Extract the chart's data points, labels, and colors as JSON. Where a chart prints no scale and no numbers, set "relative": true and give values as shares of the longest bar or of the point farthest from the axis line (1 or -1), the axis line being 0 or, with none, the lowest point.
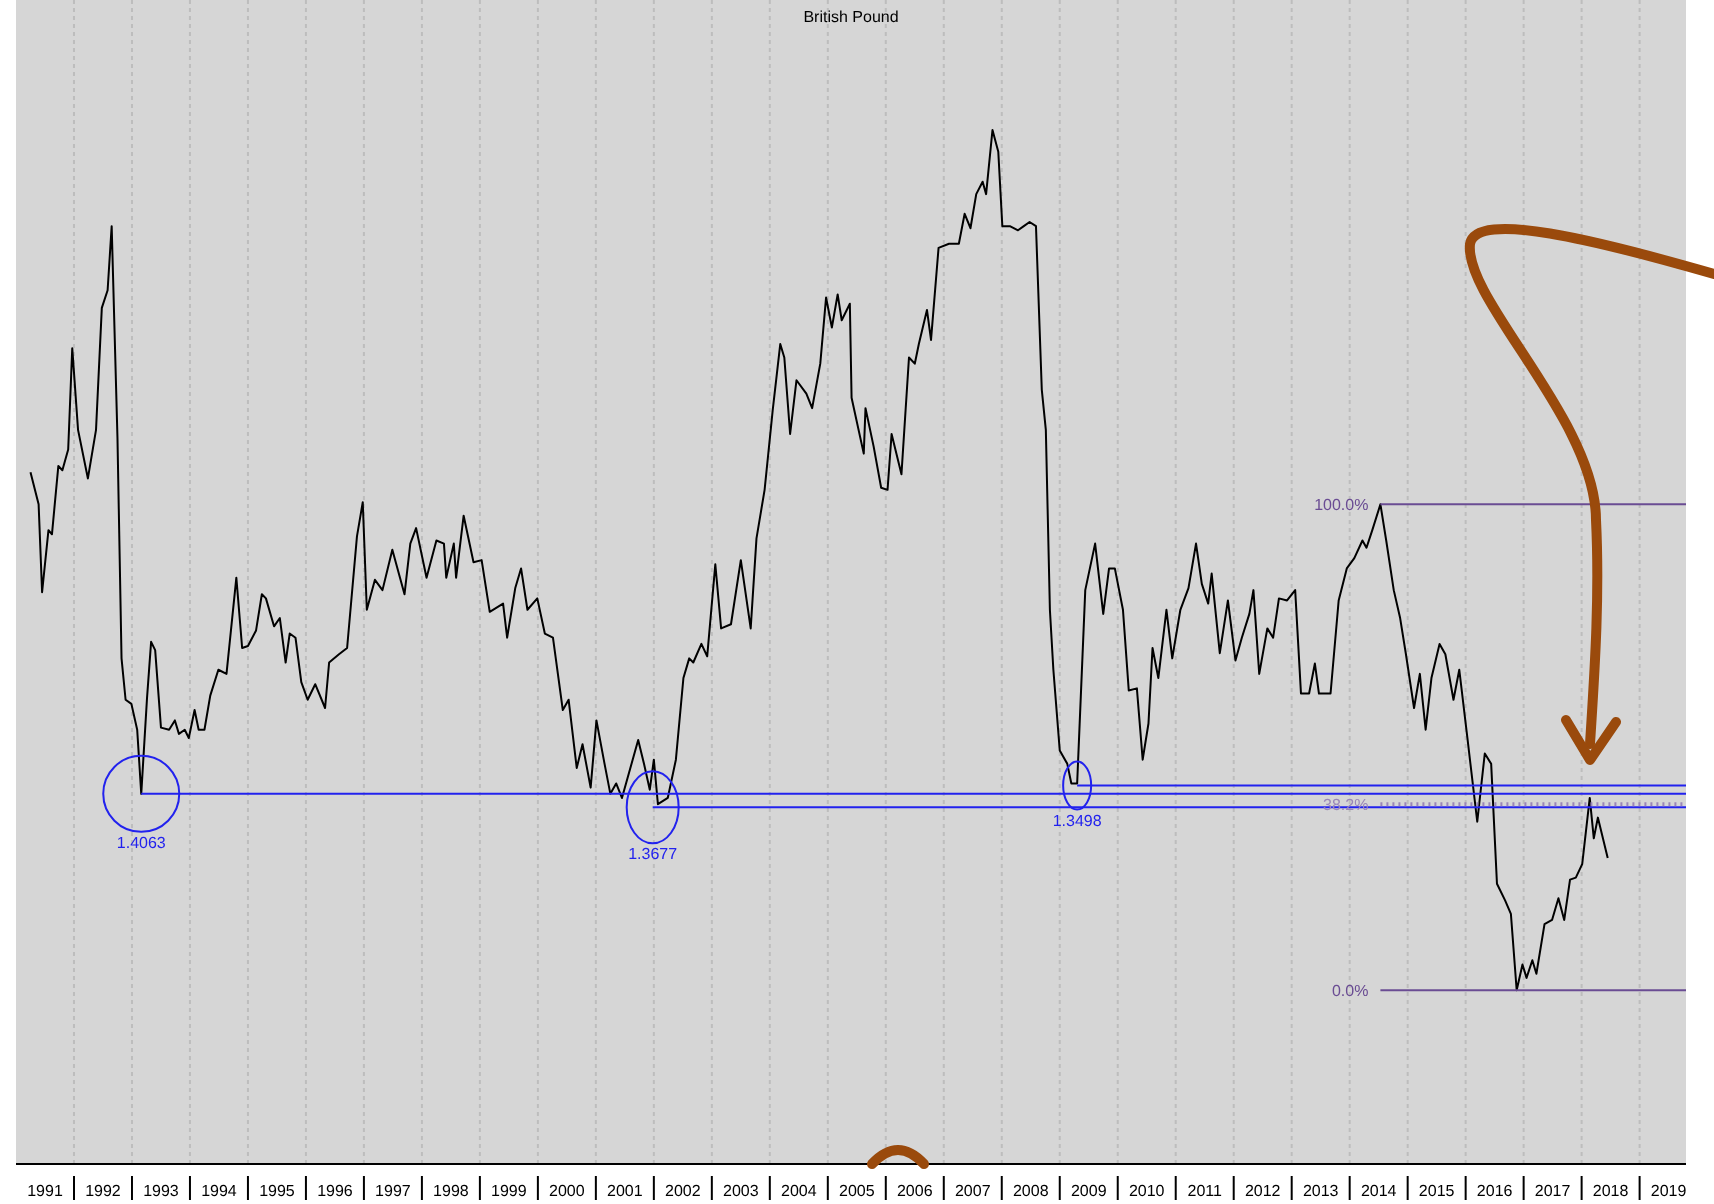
{
  "chart_data": {
    "type": "line",
    "title": "British Pound",
    "relative": true,
    "grid": "x",
    "xlim": [
      1991.0,
      2019.8
    ],
    "xticks": [
      {
        "value": 1991.5,
        "label": "1991"
      },
      {
        "value": 1992,
        "label": null
      },
      {
        "value": 1992.5,
        "label": "1992"
      },
      {
        "value": 1993,
        "label": null
      },
      {
        "value": 1993.5,
        "label": "1993"
      },
      {
        "value": 1994,
        "label": null
      },
      {
        "value": 1994.5,
        "label": "1994"
      },
      {
        "value": 1995,
        "label": null
      },
      {
        "value": 1995.5,
        "label": "1995"
      },
      {
        "value": 1996,
        "label": null
      },
      {
        "value": 1996.5,
        "label": "1996"
      },
      {
        "value": 1997,
        "label": null
      },
      {
        "value": 1997.5,
        "label": "1997"
      },
      {
        "value": 1998,
        "label": null
      },
      {
        "value": 1998.5,
        "label": "1998"
      },
      {
        "value": 1999,
        "label": null
      },
      {
        "value": 1999.5,
        "label": "1999"
      },
      {
        "value": 2000,
        "label": null
      },
      {
        "value": 2000.5,
        "label": "2000"
      },
      {
        "value": 2001,
        "label": null
      },
      {
        "value": 2001.5,
        "label": "2001"
      },
      {
        "value": 2002,
        "label": null
      },
      {
        "value": 2002.5,
        "label": "2002"
      },
      {
        "value": 2003,
        "label": null
      },
      {
        "value": 2003.5,
        "label": "2003"
      },
      {
        "value": 2004,
        "label": null
      },
      {
        "value": 2004.5,
        "label": "2004"
      },
      {
        "value": 2005,
        "label": null
      },
      {
        "value": 2005.5,
        "label": "2005"
      },
      {
        "value": 2006,
        "label": null
      },
      {
        "value": 2006.5,
        "label": "2006"
      },
      {
        "value": 2007,
        "label": null
      },
      {
        "value": 2007.5,
        "label": "2007"
      },
      {
        "value": 2008,
        "label": null
      },
      {
        "value": 2008.5,
        "label": "2008"
      },
      {
        "value": 2009,
        "label": null
      },
      {
        "value": 2009.5,
        "label": "2009"
      },
      {
        "value": 2010,
        "label": null
      },
      {
        "value": 2010.5,
        "label": "2010"
      },
      {
        "value": 2011,
        "label": null
      },
      {
        "value": 2011.5,
        "label": "2011"
      },
      {
        "value": 2012,
        "label": null
      },
      {
        "value": 2012.5,
        "label": "2012"
      },
      {
        "value": 2013,
        "label": null
      },
      {
        "value": 2013.5,
        "label": "2013"
      },
      {
        "value": 2014,
        "label": null
      },
      {
        "value": 2014.5,
        "label": "2014"
      },
      {
        "value": 2015,
        "label": null
      },
      {
        "value": 2015.5,
        "label": "2015"
      },
      {
        "value": 2016,
        "label": null
      },
      {
        "value": 2016.5,
        "label": "2016"
      },
      {
        "value": 2017,
        "label": null
      },
      {
        "value": 2017.5,
        "label": "2017"
      },
      {
        "value": 2018,
        "label": null
      },
      {
        "value": 2018.5,
        "label": "2018"
      },
      {
        "value": 2019,
        "label": null
      },
      {
        "value": 2019.5,
        "label": "2019"
      }
    ],
    "series": [
      {
        "color": "#000000",
        "x": [
          1991.25,
          1991.39,
          1991.45,
          1991.56,
          1991.62,
          1991.73,
          1991.8,
          1991.9,
          1991.97,
          1992.07,
          1992.24,
          1992.38,
          1992.48,
          1992.58,
          1992.65,
          1992.75,
          1992.82,
          1992.89,
          1992.99,
          1993.09,
          1993.16,
          1993.26,
          1993.33,
          1993.4,
          1993.5,
          1993.64,
          1993.74,
          1993.81,
          1993.91,
          1993.98,
          1994.08,
          1994.15,
          1994.25,
          1994.35,
          1994.49,
          1994.63,
          1994.8,
          1994.9,
          1995.0,
          1995.14,
          1995.24,
          1995.31,
          1995.45,
          1995.55,
          1995.65,
          1995.72,
          1995.82,
          1995.92,
          1996.03,
          1996.16,
          1996.33,
          1996.4,
          1996.57,
          1996.71,
          1996.88,
          1996.98,
          1997.05,
          1997.19,
          1997.32,
          1997.49,
          1997.7,
          1997.8,
          1997.9,
          1998.08,
          1998.25,
          1998.38,
          1998.42,
          1998.55,
          1998.59,
          1998.72,
          1998.89,
          1999.03,
          1999.17,
          1999.4,
          1999.47,
          1999.61,
          1999.71,
          1999.82,
          1999.99,
          2000.12,
          2000.26,
          2000.43,
          2000.53,
          2000.67,
          2000.77,
          2000.91,
          2001.01,
          2001.15,
          2001.25,
          2001.35,
          2001.45,
          2001.73,
          2001.83,
          2001.93,
          2002.0,
          2002.07,
          2002.24,
          2002.38,
          2002.51,
          2002.61,
          2002.68,
          2002.82,
          2002.92,
          2003.06,
          2003.16,
          2003.33,
          2003.5,
          2003.67,
          2003.77,
          2003.91,
          2004.05,
          2004.18,
          2004.25,
          2004.35,
          2004.46,
          2004.63,
          2004.73,
          2004.87,
          2004.97,
          2005.07,
          2005.17,
          2005.24,
          2005.38,
          2005.41,
          2005.62,
          2005.65,
          2005.79,
          2005.92,
          2006.03,
          2006.1,
          2006.27,
          2006.4,
          2006.5,
          2006.57,
          2006.71,
          2006.78,
          2006.91,
          2007.09,
          2007.26,
          2007.36,
          2007.46,
          2007.56,
          2007.67,
          2007.73,
          2007.84,
          2007.94,
          2008.01,
          2008.14,
          2008.28,
          2008.38,
          2008.48,
          2008.59,
          2008.69,
          2008.76,
          2008.83,
          2008.89,
          2009.0,
          2009.13,
          2009.2,
          2009.3,
          2009.44,
          2009.61,
          2009.75,
          2009.85,
          2009.95,
          2010.09,
          2010.19,
          2010.33,
          2010.43,
          2010.53,
          2010.6,
          2010.7,
          2010.84,
          2010.94,
          2011.08,
          2011.22,
          2011.35,
          2011.45,
          2011.56,
          2011.62,
          2011.76,
          2011.9,
          2012.03,
          2012.14,
          2012.27,
          2012.34,
          2012.44,
          2012.58,
          2012.68,
          2012.78,
          2012.92,
          2013.06,
          2013.16,
          2013.3,
          2013.4,
          2013.47,
          2013.67,
          2013.81,
          2013.95,
          2014.08,
          2014.22,
          2014.29,
          2014.39,
          2014.53,
          2014.63,
          2014.76,
          2014.87,
          2014.97,
          2015.11,
          2015.21,
          2015.31,
          2015.41,
          2015.55,
          2015.65,
          2015.79,
          2015.89,
          2016.03,
          2016.2,
          2016.33,
          2016.44,
          2016.54,
          2016.68,
          2016.78,
          2016.88,
          2016.98,
          2017.05,
          2017.15,
          2017.22,
          2017.36,
          2017.49,
          2017.6,
          2017.7,
          2017.8,
          2017.9,
          2018.01,
          2018.14,
          2018.21,
          2018.28,
          2018.45
        ],
        "values": [
          0.669,
          0.638,
          0.553,
          0.613,
          0.609,
          0.675,
          0.671,
          0.691,
          0.789,
          0.71,
          0.663,
          0.71,
          0.828,
          0.845,
          0.907,
          0.702,
          0.489,
          0.449,
          0.445,
          0.42,
          0.358,
          0.451,
          0.505,
          0.497,
          0.422,
          0.42,
          0.429,
          0.416,
          0.42,
          0.412,
          0.439,
          0.42,
          0.42,
          0.453,
          0.478,
          0.474,
          0.567,
          0.499,
          0.501,
          0.516,
          0.551,
          0.547,
          0.52,
          0.528,
          0.485,
          0.513,
          0.509,
          0.466,
          0.449,
          0.464,
          0.441,
          0.485,
          0.493,
          0.499,
          0.607,
          0.64,
          0.536,
          0.565,
          0.555,
          0.594,
          0.551,
          0.6,
          0.615,
          0.567,
          0.603,
          0.6,
          0.567,
          0.6,
          0.567,
          0.627,
          0.582,
          0.584,
          0.534,
          0.542,
          0.509,
          0.557,
          0.576,
          0.536,
          0.547,
          0.513,
          0.509,
          0.439,
          0.449,
          0.383,
          0.406,
          0.364,
          0.429,
          0.387,
          0.358,
          0.368,
          0.354,
          0.41,
          0.387,
          0.362,
          0.391,
          0.348,
          0.354,
          0.391,
          0.47,
          0.489,
          0.485,
          0.503,
          0.491,
          0.58,
          0.518,
          0.522,
          0.584,
          0.518,
          0.605,
          0.652,
          0.729,
          0.793,
          0.78,
          0.706,
          0.758,
          0.745,
          0.731,
          0.774,
          0.838,
          0.809,
          0.841,
          0.816,
          0.832,
          0.741,
          0.687,
          0.731,
          0.694,
          0.654,
          0.652,
          0.706,
          0.667,
          0.78,
          0.774,
          0.793,
          0.826,
          0.797,
          0.886,
          0.89,
          0.89,
          0.919,
          0.905,
          0.938,
          0.95,
          0.938,
          1.0,
          0.979,
          0.907,
          0.907,
          0.903,
          0.907,
          0.911,
          0.907,
          0.749,
          0.71,
          0.536,
          0.478,
          0.4,
          0.387,
          0.368,
          0.368,
          0.555,
          0.6,
          0.532,
          0.576,
          0.576,
          0.536,
          0.458,
          0.46,
          0.391,
          0.426,
          0.499,
          0.47,
          0.536,
          0.489,
          0.536,
          0.557,
          0.6,
          0.561,
          0.542,
          0.571,
          0.494,
          0.545,
          0.487,
          0.509,
          0.532,
          0.555,
          0.474,
          0.518,
          0.509,
          0.547,
          0.545,
          0.555,
          0.455,
          0.455,
          0.484,
          0.455,
          0.455,
          0.545,
          0.576,
          0.586,
          0.603,
          0.596,
          0.613,
          0.638,
          0.603,
          0.555,
          0.528,
          0.493,
          0.441,
          0.474,
          0.42,
          0.47,
          0.503,
          0.493,
          0.449,
          0.478,
          0.412,
          0.331,
          0.397,
          0.387,
          0.271,
          0.255,
          0.242,
          0.168,
          0.193,
          0.18,
          0.197,
          0.184,
          0.232,
          0.236,
          0.257,
          0.236,
          0.275,
          0.277,
          0.29,
          0.354,
          0.315,
          0.335,
          0.296
        ]
      },
      {
        "type": "line",
        "color": "#2222ee",
        "x": [
          1993.16,
          2019.8
        ],
        "values": [
          0.358,
          0.358
        ]
      },
      {
        "type": "line",
        "color": "#2222ee",
        "x": [
          2001.98,
          2019.8
        ],
        "values": [
          0.345,
          0.345
        ]
      },
      {
        "type": "line",
        "color": "#2222ee",
        "x": [
          2009.3,
          2019.8
        ],
        "values": [
          0.366,
          0.366
        ]
      },
      {
        "type": "line",
        "name": "100.0%",
        "color": "#6a4c93",
        "x": [
          2014.53,
          2019.8
        ],
        "values": [
          0.638,
          0.638
        ]
      },
      {
        "type": "line",
        "name": "38.2%",
        "color": "#9a86b8",
        "line_style": "dotted",
        "x": [
          2014.53,
          2019.8
        ],
        "values": [
          0.348,
          0.348
        ]
      },
      {
        "type": "line",
        "name": "0.0%",
        "color": "#6a4c93",
        "x": [
          2014.53,
          2019.8
        ],
        "values": [
          0.168,
          0.168
        ]
      }
    ],
    "annotations": [
      {
        "text": "1.4063",
        "x": 1993.16,
        "y": 0.358
      },
      {
        "text": "1.3677",
        "x": 2001.98,
        "y": 0.345
      },
      {
        "text": "1.3498",
        "x": 2009.3,
        "y": 0.366
      }
    ]
  }
}
